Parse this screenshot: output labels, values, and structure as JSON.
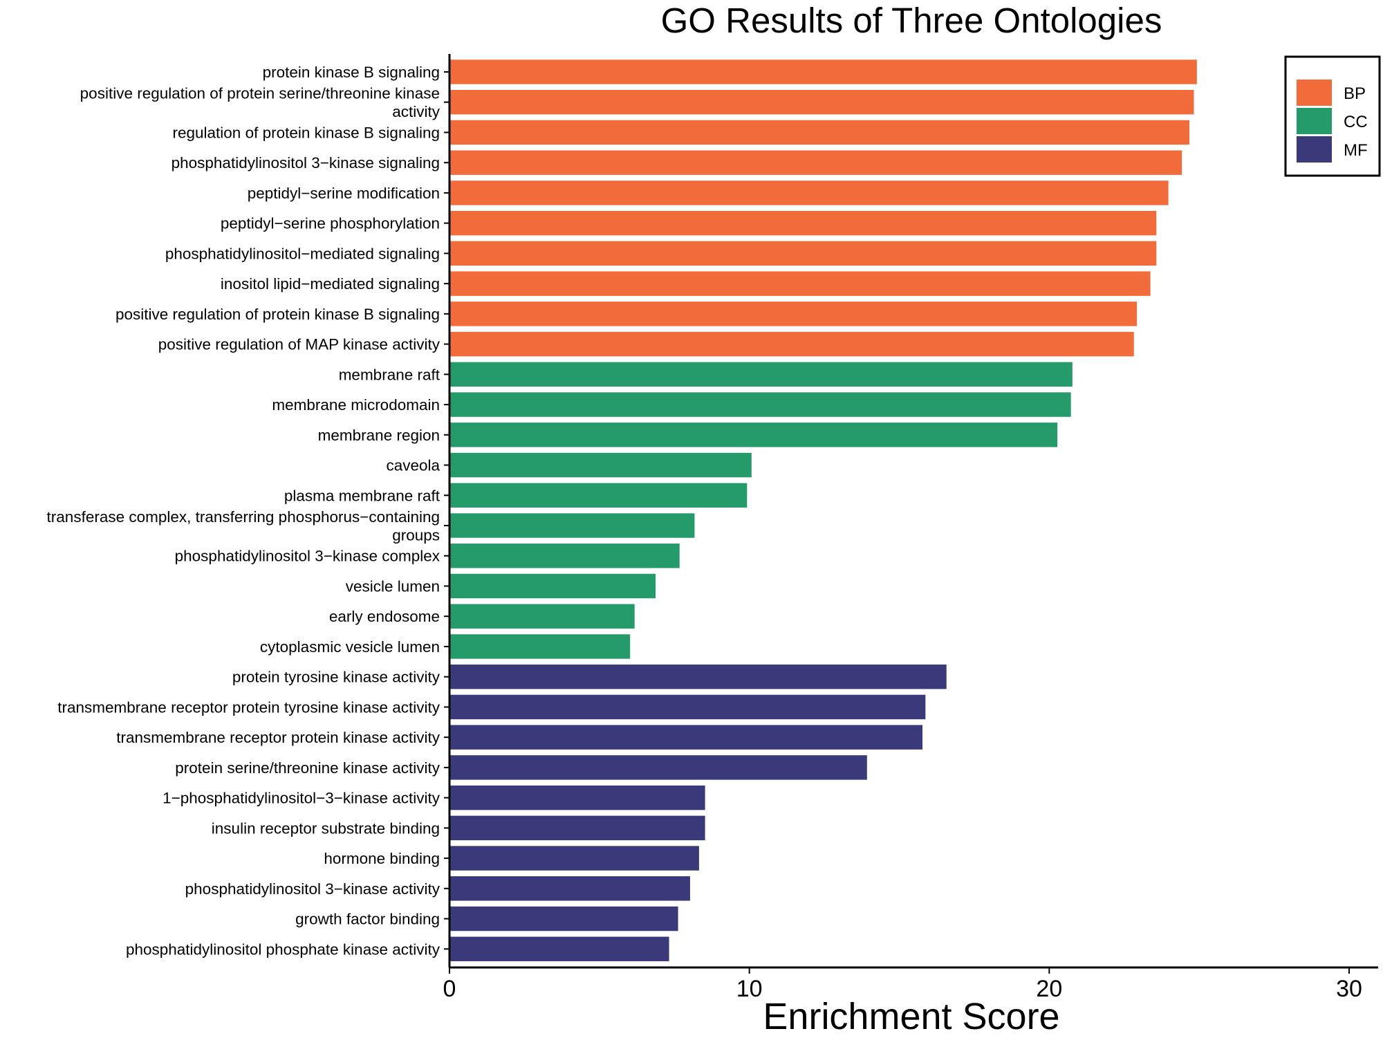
{
  "chart_data": {
    "type": "bar",
    "orientation": "horizontal",
    "title": "GO Results of Three Ontologies",
    "xlabel": "Enrichment Score",
    "ylabel": "",
    "xlim": [
      0,
      30.2
    ],
    "xticks": [
      0,
      10,
      20,
      30
    ],
    "grid": false,
    "legend_position": "top-right",
    "legend": [
      {
        "name": "BP",
        "color": "#F26B3A"
      },
      {
        "name": "CC",
        "color": "#259B6C"
      },
      {
        "name": "MF",
        "color": "#3A3A7A"
      }
    ],
    "bars": [
      {
        "label": [
          "protein kinase B signaling"
        ],
        "value": 24.9,
        "group": "BP"
      },
      {
        "label": [
          "positive regulation of protein serine/threonine kinase",
          "activity"
        ],
        "value": 24.8,
        "group": "BP"
      },
      {
        "label": [
          "regulation of protein kinase B signaling"
        ],
        "value": 24.65,
        "group": "BP"
      },
      {
        "label": [
          "phosphatidylinositol 3−kinase signaling"
        ],
        "value": 24.4,
        "group": "BP"
      },
      {
        "label": [
          "peptidyl−serine modification"
        ],
        "value": 23.95,
        "group": "BP"
      },
      {
        "label": [
          "peptidyl−serine phosphorylation"
        ],
        "value": 23.55,
        "group": "BP"
      },
      {
        "label": [
          "phosphatidylinositol−mediated signaling"
        ],
        "value": 23.55,
        "group": "BP"
      },
      {
        "label": [
          "inositol lipid−mediated signaling"
        ],
        "value": 23.35,
        "group": "BP"
      },
      {
        "label": [
          "positive regulation of protein kinase B signaling"
        ],
        "value": 22.9,
        "group": "BP"
      },
      {
        "label": [
          "positive regulation of MAP kinase activity"
        ],
        "value": 22.8,
        "group": "BP"
      },
      {
        "label": [
          "membrane raft"
        ],
        "value": 20.75,
        "group": "CC"
      },
      {
        "label": [
          "membrane microdomain"
        ],
        "value": 20.7,
        "group": "CC"
      },
      {
        "label": [
          "membrane region"
        ],
        "value": 20.25,
        "group": "CC"
      },
      {
        "label": [
          "caveola"
        ],
        "value": 10.05,
        "group": "CC"
      },
      {
        "label": [
          "plasma membrane raft"
        ],
        "value": 9.9,
        "group": "CC"
      },
      {
        "label": [
          "transferase complex, transferring phosphorus−containing",
          "groups"
        ],
        "value": 8.15,
        "group": "CC"
      },
      {
        "label": [
          "phosphatidylinositol 3−kinase complex"
        ],
        "value": 7.65,
        "group": "CC"
      },
      {
        "label": [
          "vesicle lumen"
        ],
        "value": 6.85,
        "group": "CC"
      },
      {
        "label": [
          "early endosome"
        ],
        "value": 6.15,
        "group": "CC"
      },
      {
        "label": [
          "cytoplasmic vesicle lumen"
        ],
        "value": 6.0,
        "group": "CC"
      },
      {
        "label": [
          "protein tyrosine kinase activity"
        ],
        "value": 16.55,
        "group": "MF"
      },
      {
        "label": [
          "transmembrane receptor protein tyrosine kinase activity"
        ],
        "value": 15.85,
        "group": "MF"
      },
      {
        "label": [
          "transmembrane receptor protein kinase activity"
        ],
        "value": 15.75,
        "group": "MF"
      },
      {
        "label": [
          "protein serine/threonine kinase activity"
        ],
        "value": 13.9,
        "group": "MF"
      },
      {
        "label": [
          "1−phosphatidylinositol−3−kinase activity"
        ],
        "value": 8.5,
        "group": "MF"
      },
      {
        "label": [
          "insulin receptor substrate binding"
        ],
        "value": 8.5,
        "group": "MF"
      },
      {
        "label": [
          "hormone binding"
        ],
        "value": 8.3,
        "group": "MF"
      },
      {
        "label": [
          "phosphatidylinositol 3−kinase activity"
        ],
        "value": 8.0,
        "group": "MF"
      },
      {
        "label": [
          "growth factor binding"
        ],
        "value": 7.6,
        "group": "MF"
      },
      {
        "label": [
          "phosphatidylinositol phosphate kinase activity"
        ],
        "value": 7.3,
        "group": "MF"
      }
    ]
  }
}
